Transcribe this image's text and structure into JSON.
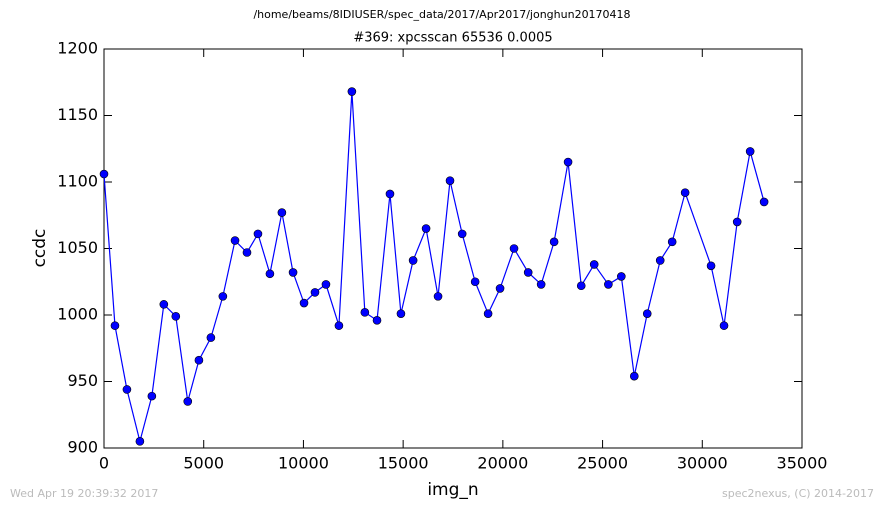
{
  "chart_data": {
    "type": "line",
    "suptitle": "/home/beams/8IDIUSER/spec_data/2017/Apr2017/jonghun20170418",
    "title": "#369: xpcsscan 65536 0.0005",
    "xlabel": "img_n",
    "ylabel": "ccdc",
    "x": [
      0,
      550,
      1150,
      1800,
      2400,
      3000,
      3600,
      4200,
      4760,
      5360,
      5960,
      6570,
      7170,
      7720,
      8320,
      8920,
      9480,
      10030,
      10580,
      11130,
      11780,
      12430,
      13080,
      13690,
      14340,
      14890,
      15500,
      16150,
      16750,
      17350,
      17960,
      18610,
      19260,
      19860,
      20560,
      21270,
      21920,
      22570,
      23270,
      23930,
      24580,
      25290,
      25940,
      26590,
      27240,
      27890,
      28490,
      29140,
      30440,
      31090,
      31750,
      32400,
      33100
    ],
    "series": [
      {
        "name": "ccdc",
        "color": "#0000ff",
        "values": [
          1106,
          992,
          944,
          905,
          939,
          1008,
          999,
          935,
          966,
          983,
          1014,
          1056,
          1047,
          1061,
          1031,
          1077,
          1032,
          1009,
          1017,
          1023,
          992,
          1168,
          1002,
          996,
          1091,
          1001,
          1041,
          1065,
          1014,
          1101,
          1061,
          1025,
          1001,
          1020,
          1050,
          1032,
          1023,
          1055,
          1115,
          1022,
          1038,
          1023,
          1029,
          954,
          1001,
          1041,
          1055,
          1092,
          1037,
          992,
          1070,
          1123,
          1085
        ]
      }
    ],
    "xlim": [
      0,
      35000
    ],
    "xticks": [
      0,
      5000,
      10000,
      15000,
      20000,
      25000,
      30000,
      35000
    ],
    "ylim": [
      900,
      1200
    ],
    "yticks": [
      900,
      950,
      1000,
      1050,
      1100,
      1150,
      1200
    ],
    "grid": false,
    "footer_left": "Wed Apr 19 20:39:32 2017",
    "footer_right": "spec2nexus, (C) 2014-2017"
  }
}
